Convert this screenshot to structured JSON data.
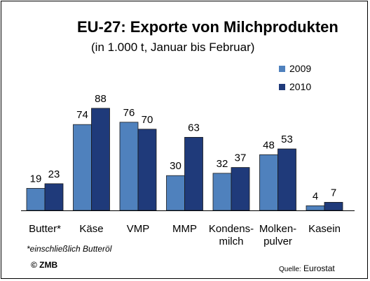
{
  "chart_data": {
    "type": "bar",
    "title": "EU-27: Exporte von Milchprodukten",
    "subtitle": "(in 1.000 t,   Januar bis Februar)",
    "categories": [
      [
        "Butter*"
      ],
      [
        "Käse"
      ],
      [
        "VMP"
      ],
      [
        "MMP"
      ],
      [
        "Kondens-",
        "milch"
      ],
      [
        "Molken-",
        "pulver"
      ],
      [
        "Kasein"
      ]
    ],
    "series": [
      {
        "name": "2009",
        "color": "#4f81bd",
        "values": [
          19,
          74,
          76,
          30,
          32,
          48,
          4
        ]
      },
      {
        "name": "2010",
        "color": "#1f3a7a",
        "values": [
          23,
          88,
          70,
          63,
          37,
          53,
          7
        ]
      }
    ],
    "ylim": [
      0,
      100
    ],
    "grid": false,
    "legend_position": "top-right"
  },
  "footnote": "*einschließlich Butteröl",
  "copyright": "© ZMB",
  "source": {
    "label": "Quelle:",
    "value": "Eurostat"
  }
}
